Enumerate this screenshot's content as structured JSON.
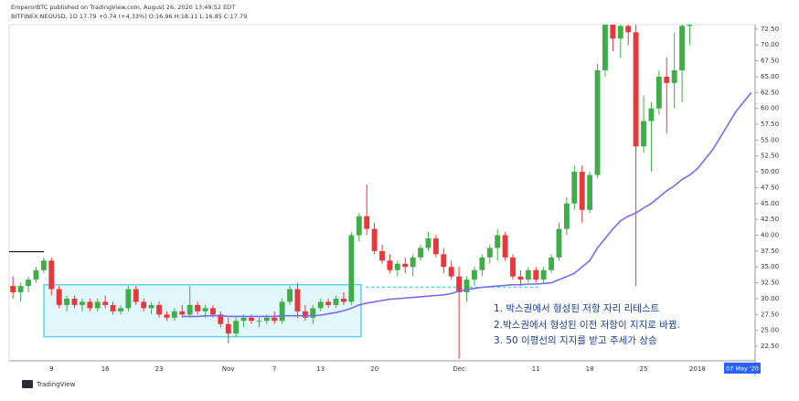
{
  "chart_data": {
    "type": "candlestick",
    "title": "EmperorBTC published on TradingView.com, August 26, 2020 13:49:52 EDT",
    "subtitle": "BITFINEX:NEOUSD, 1D 17.79 +0.74 (+4.33%) O:16.96 H:18.11 L:16.85 C:17.79",
    "footer": "TradingView",
    "crosshair_label": "07 May '20",
    "annotations": [
      "1. 박스권에서 형성된 저항 자리 리테스트",
      "2.박스권에서 형성된 이전 저항이 지지로 바뀜.",
      "3. 50 이평선의 지지를 받고 주세가 상승"
    ],
    "up_color": "#3fae49",
    "down_color": "#e8383b",
    "ma_color": "#7b68ee",
    "box_color": "#5fd3e8",
    "categories": [
      null,
      null,
      null,
      null,
      null,
      "9",
      null,
      null,
      null,
      null,
      null,
      null,
      "16",
      null,
      null,
      null,
      null,
      null,
      null,
      "23",
      null,
      null,
      null,
      null,
      null,
      null,
      null,
      null,
      "Nov",
      null,
      null,
      null,
      null,
      null,
      "7",
      null,
      null,
      null,
      null,
      null,
      "13",
      null,
      null,
      null,
      null,
      null,
      null,
      "20",
      null,
      null,
      null,
      null,
      null,
      null,
      null,
      null,
      null,
      null,
      "Dec",
      null,
      null,
      null,
      null,
      null,
      null,
      null,
      null,
      null,
      "11",
      null,
      null,
      null,
      null,
      null,
      null,
      "18",
      null,
      null,
      null,
      null,
      null,
      null,
      "25",
      null,
      null,
      null,
      null,
      null,
      null,
      "2018",
      null,
      null,
      null,
      null,
      null,
      null,
      null
    ],
    "open": [
      32,
      31,
      32,
      33,
      34.5,
      36,
      31.5,
      29,
      30,
      29,
      29.5,
      28.5,
      29.5,
      29,
      28,
      28.5,
      31.5,
      29.5,
      28.5,
      29,
      27.5,
      27,
      28,
      27.5,
      29,
      28,
      28.5,
      27.5,
      26,
      24.5,
      26.5,
      27,
      26.5,
      26.5,
      27,
      26.5,
      29.5,
      31.5,
      28,
      27,
      28.5,
      29.5,
      29,
      30,
      29.5,
      40,
      43,
      41,
      37.5,
      36,
      34.5,
      35.5,
      35,
      36.5,
      38,
      39.5,
      37,
      35,
      33.5,
      31,
      33,
      34.5,
      36.5,
      38,
      40,
      36.5,
      33.5,
      33,
      34.5,
      33,
      34.5,
      36.5,
      41,
      45,
      50,
      44,
      49.5,
      66,
      74,
      71,
      73,
      72,
      54,
      58,
      60,
      65,
      64,
      66,
      73,
      null,
      null,
      null,
      null,
      null,
      null,
      null,
      null
    ],
    "high": [
      33.5,
      32.5,
      33.5,
      35,
      36.5,
      36.5,
      32,
      30.5,
      30.5,
      30,
      30,
      30,
      30.5,
      29.5,
      29,
      32,
      32,
      30,
      29.5,
      29.5,
      28,
      28.5,
      29,
      32,
      29.5,
      29,
      29,
      28,
      27,
      27,
      27.5,
      27.5,
      27,
      27.5,
      28,
      30,
      32,
      32.5,
      29,
      29,
      30,
      30,
      30.5,
      31,
      40.5,
      43.5,
      48,
      42,
      38.5,
      37,
      36,
      36.5,
      37,
      38.5,
      40.5,
      40,
      38,
      36,
      35,
      33.5,
      35,
      37,
      38.5,
      41,
      40.5,
      37,
      34.5,
      35,
      35,
      35,
      37,
      42,
      46,
      51,
      51,
      50,
      67,
      76,
      76,
      76,
      76,
      74,
      62,
      61,
      66,
      68,
      72,
      76,
      76,
      null,
      null,
      null,
      null,
      null,
      null,
      null,
      null
    ],
    "low": [
      30,
      29.5,
      31,
      32.5,
      34,
      30.5,
      28.5,
      28,
      28.5,
      28,
      28,
      28,
      28.5,
      27.5,
      27.5,
      28,
      29,
      28,
      27.5,
      27,
      26.5,
      26.5,
      27,
      27,
      27.5,
      27,
      27,
      25.5,
      23,
      24,
      25.5,
      26,
      25.5,
      26,
      26,
      26,
      29,
      27,
      26.5,
      26,
      28,
      28.5,
      28.5,
      29,
      29,
      39,
      40,
      37,
      35.5,
      34,
      33.5,
      34,
      33.5,
      36,
      37.5,
      36.5,
      34,
      33,
      20.5,
      29.5,
      32,
      33.5,
      35.5,
      36,
      36,
      33,
      32,
      32.5,
      32.5,
      32.5,
      34,
      36,
      40,
      44,
      42,
      43.5,
      49,
      65,
      69,
      68,
      70,
      32,
      53,
      50,
      59,
      56,
      60,
      61,
      70,
      null,
      null,
      null,
      null,
      null,
      null,
      null,
      null
    ],
    "close": [
      31,
      32,
      33,
      34.5,
      36,
      31.5,
      29,
      30,
      29,
      29.5,
      28.5,
      29.5,
      29,
      28,
      28.5,
      31.5,
      29.5,
      28.5,
      29,
      27.5,
      27,
      28,
      27.5,
      29,
      28,
      28.5,
      27.5,
      26,
      24.5,
      26.5,
      27,
      26.5,
      26.5,
      27,
      26.5,
      29.5,
      31.5,
      28,
      27,
      28.5,
      29.5,
      29,
      30,
      29.5,
      40,
      43,
      41,
      37.5,
      36,
      34.5,
      35.5,
      35,
      36.5,
      38,
      39.5,
      37,
      35,
      33.5,
      31,
      33,
      34.5,
      36.5,
      38,
      40,
      36.5,
      33.5,
      33,
      34.5,
      33,
      34.5,
      36.5,
      41,
      45,
      50,
      44,
      49.5,
      66,
      74,
      71,
      73,
      72,
      54,
      58,
      60,
      65,
      64,
      66,
      73,
      74,
      null,
      null,
      null,
      null,
      null,
      null,
      null,
      null
    ],
    "ma": [
      null,
      null,
      null,
      null,
      null,
      null,
      null,
      null,
      null,
      null,
      null,
      null,
      null,
      null,
      null,
      null,
      null,
      null,
      null,
      null,
      null,
      null,
      27.2,
      27.2,
      27.2,
      27.3,
      27.3,
      27.3,
      27.2,
      27.2,
      27.2,
      27.2,
      27.2,
      27.2,
      27.2,
      27.3,
      27.3,
      27.3,
      27.3,
      27.3,
      27.4,
      27.6,
      27.8,
      28.1,
      28.5,
      29,
      29.3,
      29.5,
      29.7,
      29.9,
      30,
      30.1,
      30.2,
      30.3,
      30.4,
      30.5,
      30.6,
      30.8,
      31.2,
      31.4,
      31.6,
      31.8,
      31.9,
      32,
      32.1,
      32.2,
      32.2,
      32.3,
      32.3,
      32.4,
      32.5,
      33,
      33.5,
      34,
      35,
      36,
      38,
      39.5,
      41,
      42.3,
      43,
      43.5,
      44.3,
      45,
      46,
      47,
      47.8,
      48.8,
      49.5,
      50.5,
      52,
      53.5,
      55.5,
      57.5,
      59.5,
      61,
      62.5
    ],
    "box_range": [
      24.0,
      32.2
    ],
    "support_level": 31.8,
    "resistance_level": 37.4,
    "ylim": [
      20.2,
      73.2
    ],
    "yticks": [
      {
        "value": 22.5,
        "label": "22.50"
      },
      {
        "value": 25,
        "label": "25.00"
      },
      {
        "value": 27.5,
        "label": "27.50"
      },
      {
        "value": 30,
        "label": "30.00"
      },
      {
        "value": 32.5,
        "label": "32.50"
      },
      {
        "value": 35,
        "label": "35.00"
      },
      {
        "value": 37.5,
        "label": "37.50"
      },
      {
        "value": 40,
        "label": "40.00"
      },
      {
        "value": 42.5,
        "label": "42.50"
      },
      {
        "value": 45,
        "label": "45.00"
      },
      {
        "value": 47.5,
        "label": "47.50"
      },
      {
        "value": 50,
        "label": "50.00"
      },
      {
        "value": 52.5,
        "label": "52.50"
      },
      {
        "value": 55,
        "label": "55.00"
      },
      {
        "value": 57.5,
        "label": "57.50"
      },
      {
        "value": 60,
        "label": "60.00"
      },
      {
        "value": 62.5,
        "label": "62.50"
      },
      {
        "value": 65,
        "label": "65.00"
      },
      {
        "value": 67.5,
        "label": "67.50"
      },
      {
        "value": 70,
        "label": "70.00"
      },
      {
        "value": 72.5,
        "label": "72.50"
      }
    ]
  }
}
